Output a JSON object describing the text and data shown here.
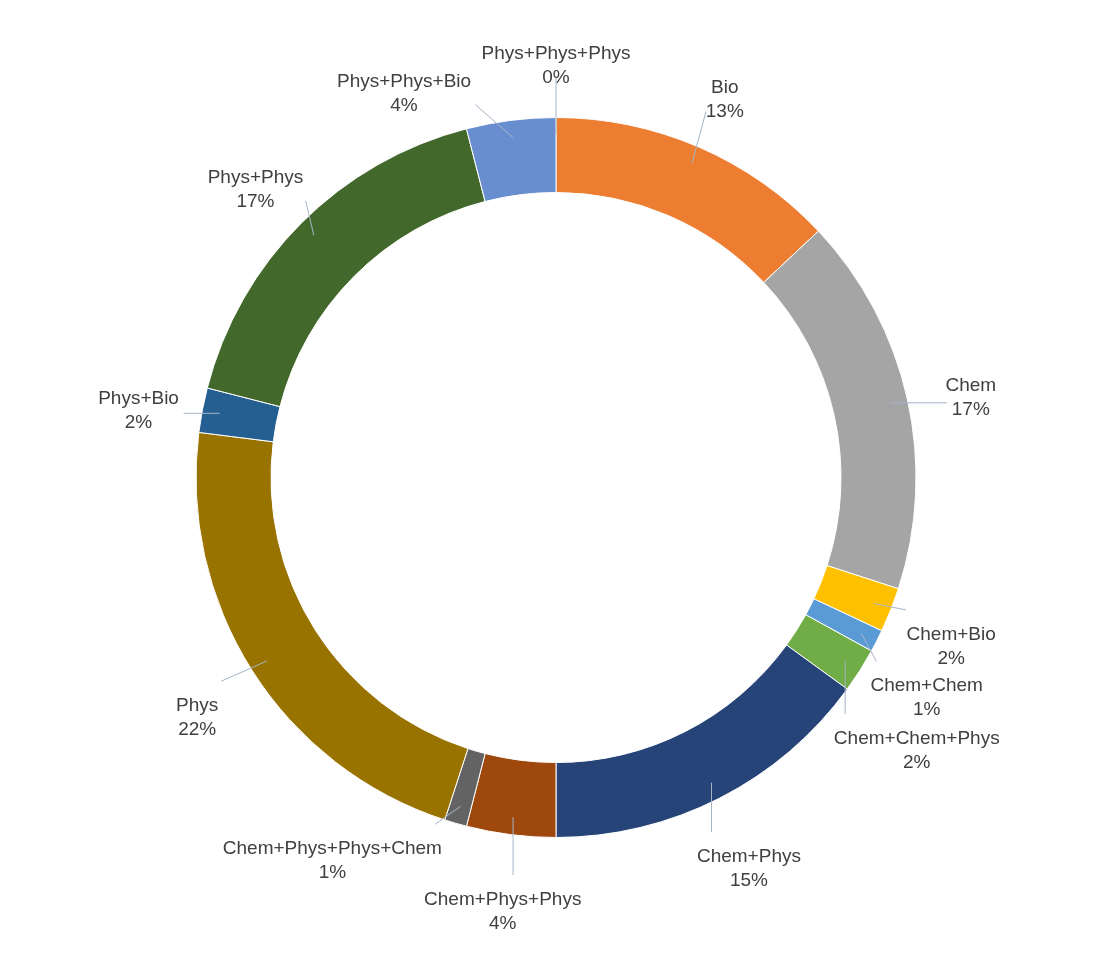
{
  "chart_data": {
    "type": "donut",
    "categories": [
      "Phys+Phys+Phys",
      "Bio",
      "Chem",
      "Chem+Bio",
      "Chem+Chem",
      "Chem+Chem+Phys",
      "Chem+Phys",
      "Chem+Phys+Phys",
      "Chem+Phys+Phys+Chem",
      "Phys",
      "Phys+Bio",
      "Phys+Phys",
      "Phys+Phys+Bio"
    ],
    "values": [
      0,
      13,
      17,
      2,
      1,
      2,
      15,
      4,
      1,
      22,
      2,
      17,
      4
    ],
    "value_labels": [
      "0%",
      "13%",
      "17%",
      "2%",
      "1%",
      "2%",
      "15%",
      "4%",
      "1%",
      "22%",
      "2%",
      "17%",
      "4%"
    ],
    "colors": [
      "#4472c4",
      "#ed7d31",
      "#a5a5a5",
      "#ffc000",
      "#5b9bd5",
      "#70ad47",
      "#264478",
      "#9e480e",
      "#636363",
      "#997300",
      "#255e91",
      "#43682b",
      "#698ed0"
    ]
  }
}
